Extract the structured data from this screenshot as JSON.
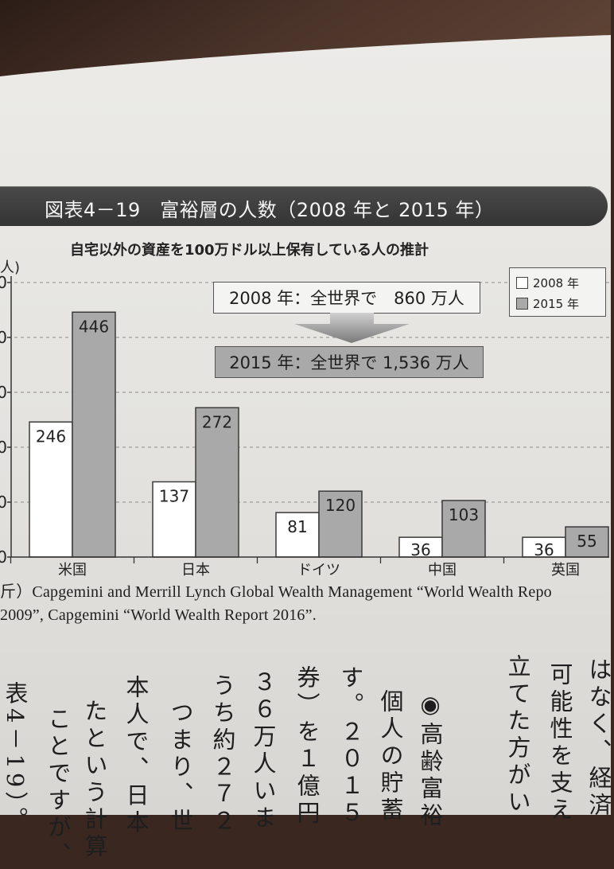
{
  "page": {
    "colors": {
      "table": "#3a2820",
      "paper_top": "#ecebe8",
      "paper_bottom": "#dcdad6",
      "band": "#3c3c3c"
    }
  },
  "chart_data": {
    "type": "bar",
    "title": "図表4－19　富裕層の人数（2008 年と 2015 年）",
    "subtitle": "自宅以外の資産を100万ドル以上保有している人の推計",
    "ylabel": "人)",
    "xlabel": "",
    "categories": [
      "米国",
      "日本",
      "ドイツ",
      "中国",
      "英国"
    ],
    "series": [
      {
        "name": "2008 年",
        "values": [
          246,
          137,
          81,
          36,
          36
        ],
        "color": "#ffffff"
      },
      {
        "name": "2015 年",
        "values": [
          446,
          272,
          120,
          103,
          55
        ],
        "color": "#a9a9a9"
      }
    ],
    "ylim": [
      0,
      500
    ],
    "ytick_labels": [
      "0",
      "0",
      "0",
      "0",
      "0",
      "0"
    ],
    "grid": true,
    "legend": "top-right",
    "data_labels": true,
    "annotations": [
      "2008 年：全世界で　860 万人",
      "2015 年：全世界で 1,536 万人"
    ]
  },
  "source": {
    "line1": "斤）Capgemini and Merrill Lynch Global Wealth Management “World Wealth Repo",
    "line2": "2009”, Capgemini “World Wealth Report 2016”."
  },
  "body_text": {
    "columns": [
      "はなく、経済",
      "可能性を支え",
      "立てた方がい",
      "◉高齢富裕",
      "個人の貯蓄",
      "す。２０１５",
      "券）を１億円",
      "３６万人いま",
      "うち約２７２",
      "つまり、世",
      "本人で、日本",
      "たという計算",
      "ことですが、",
      "表4－19）。"
    ]
  }
}
